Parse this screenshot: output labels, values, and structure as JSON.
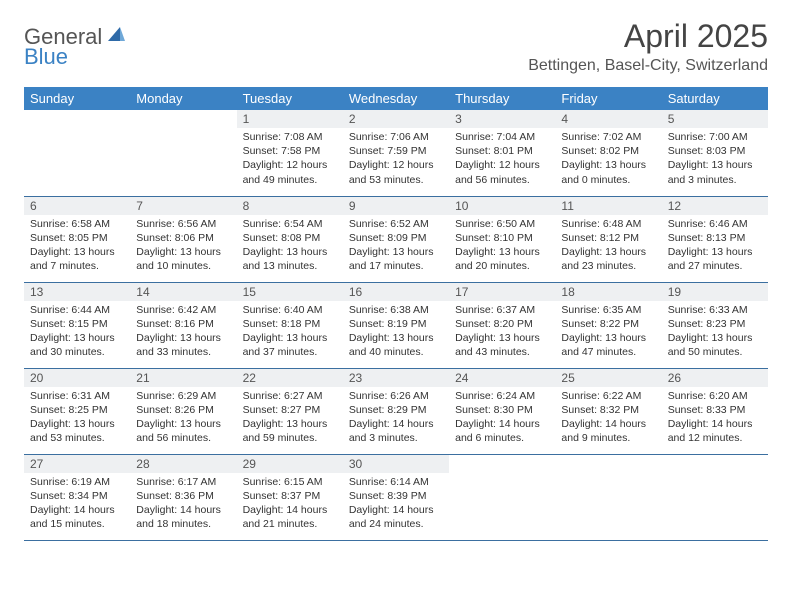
{
  "logo": {
    "general": "General",
    "blue": "Blue"
  },
  "title": "April 2025",
  "location": "Bettingen, Basel-City, Switzerland",
  "colors": {
    "header_bg": "#3b82c4",
    "header_text": "#ffffff",
    "daynum_bg": "#eef0f2",
    "row_border": "#3b6fa0",
    "logo_blue": "#3b82c4",
    "body_text": "#333333",
    "title_text": "#444444"
  },
  "weekdays": [
    "Sunday",
    "Monday",
    "Tuesday",
    "Wednesday",
    "Thursday",
    "Friday",
    "Saturday"
  ],
  "weeks": [
    [
      {
        "empty": true
      },
      {
        "empty": true
      },
      {
        "num": "1",
        "sunrise": "Sunrise: 7:08 AM",
        "sunset": "Sunset: 7:58 PM",
        "daylight": "Daylight: 12 hours and 49 minutes."
      },
      {
        "num": "2",
        "sunrise": "Sunrise: 7:06 AM",
        "sunset": "Sunset: 7:59 PM",
        "daylight": "Daylight: 12 hours and 53 minutes."
      },
      {
        "num": "3",
        "sunrise": "Sunrise: 7:04 AM",
        "sunset": "Sunset: 8:01 PM",
        "daylight": "Daylight: 12 hours and 56 minutes."
      },
      {
        "num": "4",
        "sunrise": "Sunrise: 7:02 AM",
        "sunset": "Sunset: 8:02 PM",
        "daylight": "Daylight: 13 hours and 0 minutes."
      },
      {
        "num": "5",
        "sunrise": "Sunrise: 7:00 AM",
        "sunset": "Sunset: 8:03 PM",
        "daylight": "Daylight: 13 hours and 3 minutes."
      }
    ],
    [
      {
        "num": "6",
        "sunrise": "Sunrise: 6:58 AM",
        "sunset": "Sunset: 8:05 PM",
        "daylight": "Daylight: 13 hours and 7 minutes."
      },
      {
        "num": "7",
        "sunrise": "Sunrise: 6:56 AM",
        "sunset": "Sunset: 8:06 PM",
        "daylight": "Daylight: 13 hours and 10 minutes."
      },
      {
        "num": "8",
        "sunrise": "Sunrise: 6:54 AM",
        "sunset": "Sunset: 8:08 PM",
        "daylight": "Daylight: 13 hours and 13 minutes."
      },
      {
        "num": "9",
        "sunrise": "Sunrise: 6:52 AM",
        "sunset": "Sunset: 8:09 PM",
        "daylight": "Daylight: 13 hours and 17 minutes."
      },
      {
        "num": "10",
        "sunrise": "Sunrise: 6:50 AM",
        "sunset": "Sunset: 8:10 PM",
        "daylight": "Daylight: 13 hours and 20 minutes."
      },
      {
        "num": "11",
        "sunrise": "Sunrise: 6:48 AM",
        "sunset": "Sunset: 8:12 PM",
        "daylight": "Daylight: 13 hours and 23 minutes."
      },
      {
        "num": "12",
        "sunrise": "Sunrise: 6:46 AM",
        "sunset": "Sunset: 8:13 PM",
        "daylight": "Daylight: 13 hours and 27 minutes."
      }
    ],
    [
      {
        "num": "13",
        "sunrise": "Sunrise: 6:44 AM",
        "sunset": "Sunset: 8:15 PM",
        "daylight": "Daylight: 13 hours and 30 minutes."
      },
      {
        "num": "14",
        "sunrise": "Sunrise: 6:42 AM",
        "sunset": "Sunset: 8:16 PM",
        "daylight": "Daylight: 13 hours and 33 minutes."
      },
      {
        "num": "15",
        "sunrise": "Sunrise: 6:40 AM",
        "sunset": "Sunset: 8:18 PM",
        "daylight": "Daylight: 13 hours and 37 minutes."
      },
      {
        "num": "16",
        "sunrise": "Sunrise: 6:38 AM",
        "sunset": "Sunset: 8:19 PM",
        "daylight": "Daylight: 13 hours and 40 minutes."
      },
      {
        "num": "17",
        "sunrise": "Sunrise: 6:37 AM",
        "sunset": "Sunset: 8:20 PM",
        "daylight": "Daylight: 13 hours and 43 minutes."
      },
      {
        "num": "18",
        "sunrise": "Sunrise: 6:35 AM",
        "sunset": "Sunset: 8:22 PM",
        "daylight": "Daylight: 13 hours and 47 minutes."
      },
      {
        "num": "19",
        "sunrise": "Sunrise: 6:33 AM",
        "sunset": "Sunset: 8:23 PM",
        "daylight": "Daylight: 13 hours and 50 minutes."
      }
    ],
    [
      {
        "num": "20",
        "sunrise": "Sunrise: 6:31 AM",
        "sunset": "Sunset: 8:25 PM",
        "daylight": "Daylight: 13 hours and 53 minutes."
      },
      {
        "num": "21",
        "sunrise": "Sunrise: 6:29 AM",
        "sunset": "Sunset: 8:26 PM",
        "daylight": "Daylight: 13 hours and 56 minutes."
      },
      {
        "num": "22",
        "sunrise": "Sunrise: 6:27 AM",
        "sunset": "Sunset: 8:27 PM",
        "daylight": "Daylight: 13 hours and 59 minutes."
      },
      {
        "num": "23",
        "sunrise": "Sunrise: 6:26 AM",
        "sunset": "Sunset: 8:29 PM",
        "daylight": "Daylight: 14 hours and 3 minutes."
      },
      {
        "num": "24",
        "sunrise": "Sunrise: 6:24 AM",
        "sunset": "Sunset: 8:30 PM",
        "daylight": "Daylight: 14 hours and 6 minutes."
      },
      {
        "num": "25",
        "sunrise": "Sunrise: 6:22 AM",
        "sunset": "Sunset: 8:32 PM",
        "daylight": "Daylight: 14 hours and 9 minutes."
      },
      {
        "num": "26",
        "sunrise": "Sunrise: 6:20 AM",
        "sunset": "Sunset: 8:33 PM",
        "daylight": "Daylight: 14 hours and 12 minutes."
      }
    ],
    [
      {
        "num": "27",
        "sunrise": "Sunrise: 6:19 AM",
        "sunset": "Sunset: 8:34 PM",
        "daylight": "Daylight: 14 hours and 15 minutes."
      },
      {
        "num": "28",
        "sunrise": "Sunrise: 6:17 AM",
        "sunset": "Sunset: 8:36 PM",
        "daylight": "Daylight: 14 hours and 18 minutes."
      },
      {
        "num": "29",
        "sunrise": "Sunrise: 6:15 AM",
        "sunset": "Sunset: 8:37 PM",
        "daylight": "Daylight: 14 hours and 21 minutes."
      },
      {
        "num": "30",
        "sunrise": "Sunrise: 6:14 AM",
        "sunset": "Sunset: 8:39 PM",
        "daylight": "Daylight: 14 hours and 24 minutes."
      },
      {
        "empty": true
      },
      {
        "empty": true
      },
      {
        "empty": true
      }
    ]
  ]
}
